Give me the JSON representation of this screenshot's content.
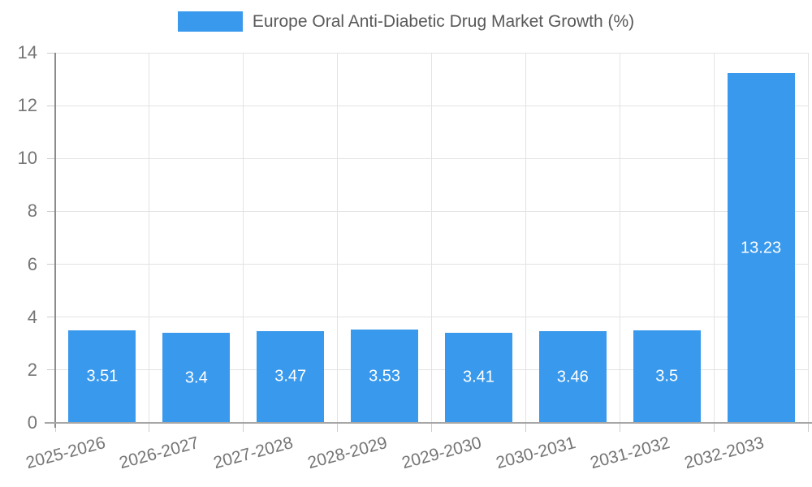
{
  "chart_data": {
    "type": "bar",
    "title": "",
    "legend": "Europe Oral Anti-Diabetic Drug Market Growth (%)",
    "legend_position": "top-center",
    "categories": [
      "2025-2026",
      "2026-2027",
      "2027-2028",
      "2028-2029",
      "2029-2030",
      "2030-2031",
      "2031-2032",
      "2032-2033"
    ],
    "values": [
      3.51,
      3.4,
      3.47,
      3.53,
      3.41,
      3.46,
      3.5,
      13.23
    ],
    "value_labels": [
      "3.51",
      "3.4",
      "3.47",
      "3.53",
      "3.41",
      "3.46",
      "3.5",
      "13.23"
    ],
    "xlabel": "",
    "ylabel": "",
    "ylim": [
      0,
      14
    ],
    "yticks": [
      0,
      2,
      4,
      6,
      8,
      10,
      12,
      14
    ],
    "grid": true,
    "bar_color": "#3999EC",
    "bar_label_color": "#ffffff"
  },
  "colors": {
    "accent": "#3999EC",
    "gridline": "#e3e3e3",
    "axis_text": "#757575",
    "legend_text": "#595959",
    "spine_left": "#8c8c8c",
    "spine_bottom": "#a6a6a6",
    "background": "#ffffff"
  }
}
